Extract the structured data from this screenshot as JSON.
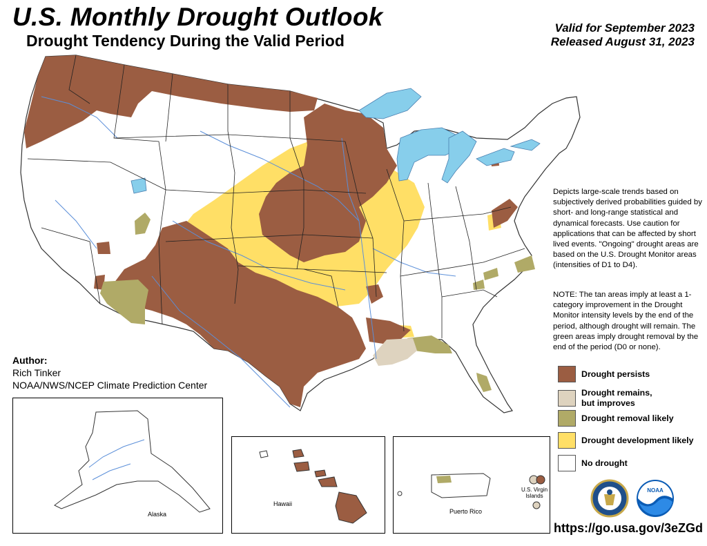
{
  "header": {
    "title": "U.S. Monthly Drought Outlook",
    "subtitle": "Drought Tendency During the Valid Period",
    "valid": "Valid for September 2023",
    "released": "Released August 31, 2023"
  },
  "description": "Depicts large-scale trends based on subjectively derived probabilities guided by short- and long-range statistical and dynamical forecasts. Use caution for applications that can be affected by short lived events. \"Ongoing\" drought areas are based on the U.S. Drought Monitor areas (intensities of D1 to D4).",
  "note": "NOTE: The tan areas imply at least a 1-category improvement in the Drought Monitor intensity levels by the end of the period, although drought will remain. The green areas imply drought removal by the end of the period (D0 or none).",
  "legend": [
    {
      "label": "Drought persists",
      "color": "#9b5d42"
    },
    {
      "label": "Drought remains,\nbut improves",
      "color": "#ded3bf"
    },
    {
      "label": "Drought removal likely",
      "color": "#b0aa67"
    },
    {
      "label": "Drought development likely",
      "color": "#ffdf66"
    },
    {
      "label": "No drought",
      "color": "#ffffff"
    }
  ],
  "author": {
    "label": "Author:",
    "name": "Rich Tinker",
    "org": "NOAA/NWS/NCEP Climate Prediction Center"
  },
  "insets": {
    "alaska": "Alaska",
    "hawaii": "Hawaii",
    "puerto_rico": "Puerto Rico",
    "virgin_islands": "U.S. Virgin Islands"
  },
  "colors": {
    "water": "#87ceeb",
    "river": "#5b8fd9",
    "border": "#333333"
  },
  "logos": [
    "department-of-commerce-seal",
    "noaa-logo"
  ],
  "url": "https://go.usa.gov/3eZGd"
}
